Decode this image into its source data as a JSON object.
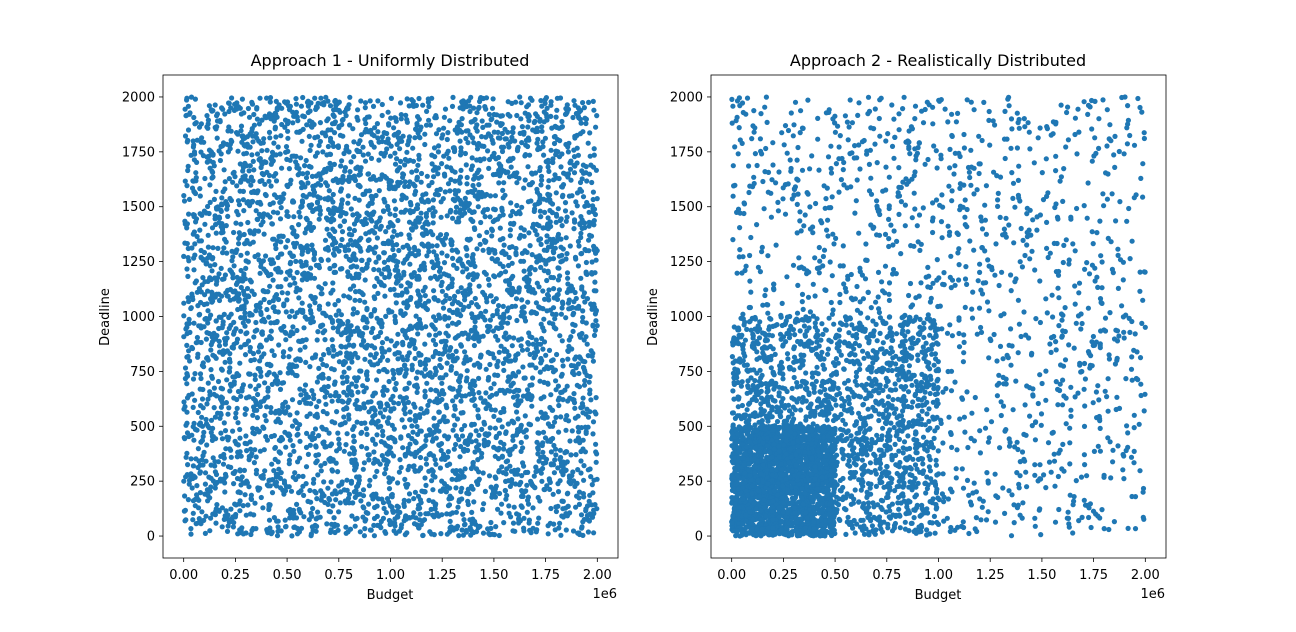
{
  "chart_data": [
    {
      "type": "scatter",
      "title": "Approach 1 - Uniformly Distributed",
      "xlabel": "Budget",
      "ylabel": "Deadline",
      "x_offset_text": "1e6",
      "xlim": [
        -0.1,
        2.1
      ],
      "ylim": [
        -100,
        2100
      ],
      "xticks": [
        0.0,
        0.25,
        0.5,
        0.75,
        1.0,
        1.25,
        1.5,
        1.75,
        2.0
      ],
      "xtick_labels": [
        "0.00",
        "0.25",
        "0.50",
        "0.75",
        "1.00",
        "1.25",
        "1.50",
        "1.75",
        "2.00"
      ],
      "yticks": [
        0,
        250,
        500,
        750,
        1000,
        1250,
        1500,
        1750,
        2000
      ],
      "ytick_labels": [
        "0",
        "250",
        "500",
        "750",
        "1000",
        "1250",
        "1500",
        "1750",
        "2000"
      ],
      "series": [
        {
          "color": "#1f77b4",
          "clusters": [
            {
              "x_range": [
                0.0,
                2.0
              ],
              "y_range": [
                0,
                2000
              ],
              "count": 5000
            }
          ]
        }
      ]
    },
    {
      "type": "scatter",
      "title": "Approach 2 - Realistically Distributed",
      "xlabel": "Budget",
      "ylabel": "Deadline",
      "x_offset_text": "1e6",
      "xlim": [
        -0.1,
        2.1
      ],
      "ylim": [
        -100,
        2100
      ],
      "xticks": [
        0.0,
        0.25,
        0.5,
        0.75,
        1.0,
        1.25,
        1.5,
        1.75,
        2.0
      ],
      "xtick_labels": [
        "0.00",
        "0.25",
        "0.50",
        "0.75",
        "1.00",
        "1.25",
        "1.50",
        "1.75",
        "2.00"
      ],
      "yticks": [
        0,
        250,
        500,
        750,
        1000,
        1250,
        1500,
        1750,
        2000
      ],
      "ytick_labels": [
        "0",
        "250",
        "500",
        "750",
        "1000",
        "1250",
        "1500",
        "1750",
        "2000"
      ],
      "series": [
        {
          "color": "#1f77b4",
          "clusters": [
            {
              "x_range": [
                0.0,
                2.0
              ],
              "y_range": [
                0,
                2000
              ],
              "count": 1500
            },
            {
              "x_range": [
                0.0,
                1.0
              ],
              "y_range": [
                0,
                1000
              ],
              "count": 1500
            },
            {
              "x_range": [
                0.0,
                0.5
              ],
              "y_range": [
                0,
                500
              ],
              "count": 2000
            }
          ]
        }
      ]
    }
  ]
}
